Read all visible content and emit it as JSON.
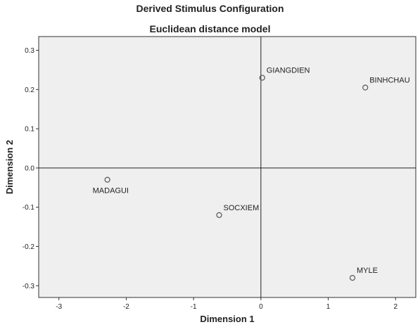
{
  "chart_data": {
    "type": "scatter",
    "title": "Derived Stimulus Configuration",
    "subtitle": "Euclidean distance model",
    "xlabel": "Dimension 1",
    "ylabel": "Dimension 2",
    "xlim": [
      -3.3,
      2.3
    ],
    "ylim": [
      -0.33,
      0.335
    ],
    "xticks": [
      -3,
      -2,
      -1,
      0,
      1,
      2
    ],
    "yticks": [
      -0.3,
      -0.2,
      -0.1,
      0.0,
      0.1,
      0.2,
      0.3
    ],
    "xtick_labels": [
      "-3",
      "-2",
      "-1",
      "0",
      "1",
      "2"
    ],
    "ytick_labels": [
      "-0.3",
      "-0.2",
      "-0.1",
      "0.0",
      "0.1",
      "0.2",
      "0.3"
    ],
    "grid": false,
    "reference_lines": {
      "x": 0,
      "y": 0
    },
    "points": [
      {
        "label": "GIANGDIEN",
        "x": 0.02,
        "y": 0.23
      },
      {
        "label": "BINHCHAU",
        "x": 1.55,
        "y": 0.205
      },
      {
        "label": "MADAGUI",
        "x": -2.28,
        "y": -0.03
      },
      {
        "label": "SOCXIEM",
        "x": -0.62,
        "y": -0.12
      },
      {
        "label": "MYLE",
        "x": 1.36,
        "y": -0.28
      }
    ],
    "colors": {
      "plot_background": "#efefef",
      "marker": "#555555",
      "axis": "#333333"
    }
  }
}
